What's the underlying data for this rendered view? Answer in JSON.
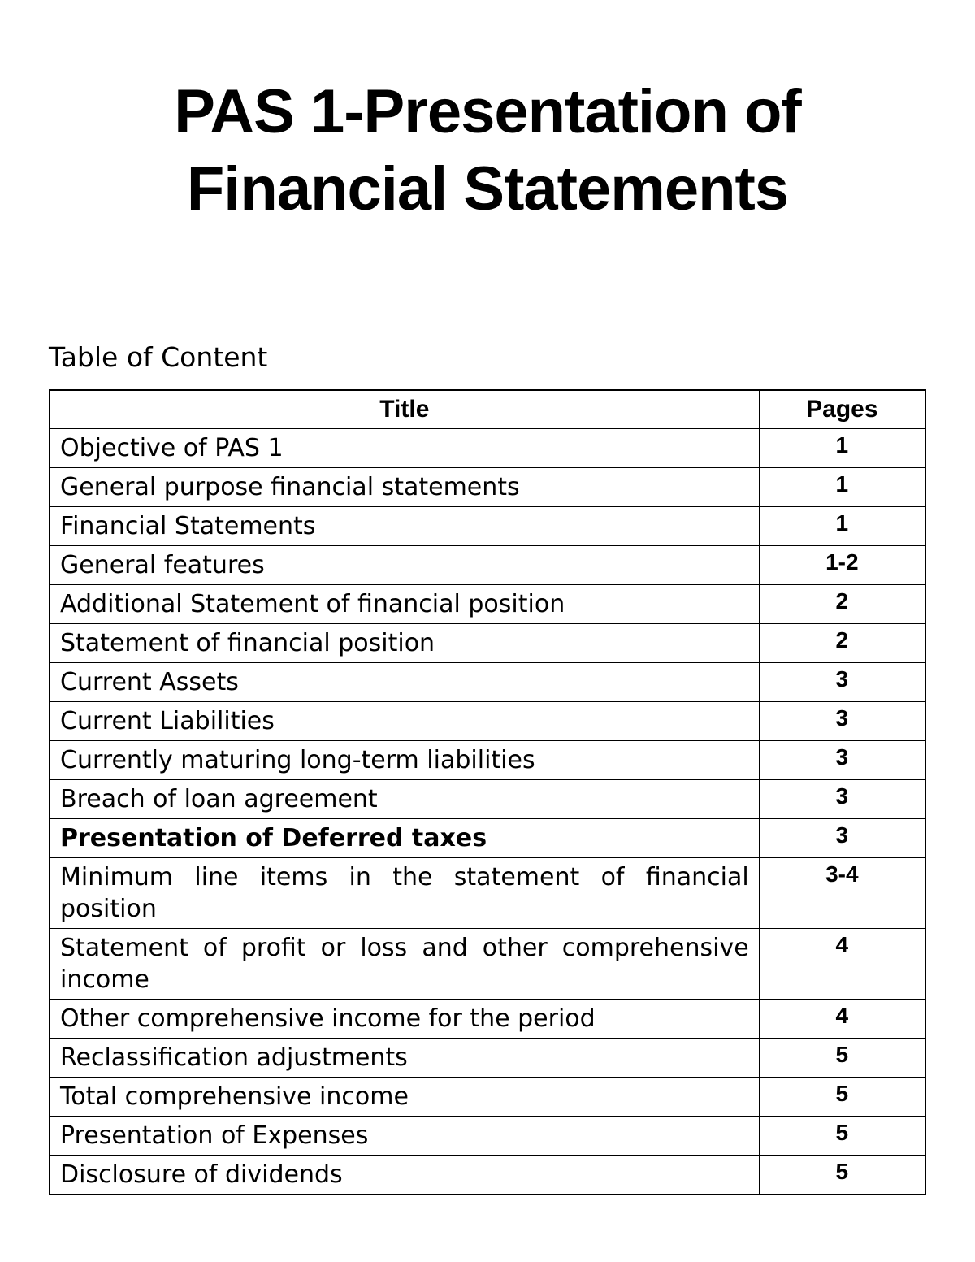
{
  "document": {
    "title": "PAS 1-Presentation of Financial Statements",
    "toc_heading": "Table of Content",
    "table": {
      "columns": [
        "Title",
        "Pages"
      ],
      "col_widths": [
        "81%",
        "19%"
      ],
      "header_fontsize": 30,
      "header_fontweight": 900,
      "cell_fontsize": 30,
      "pages_fontsize": 28,
      "pages_fontweight": 900,
      "border_color": "#000000",
      "background_color": "#ffffff",
      "rows": [
        {
          "title": "Objective of PAS 1",
          "pages": "1",
          "bold": false,
          "justified": false
        },
        {
          "title": "General purpose financial statements",
          "pages": "1",
          "bold": false,
          "justified": false
        },
        {
          "title": "Financial Statements",
          "pages": "1",
          "bold": false,
          "justified": false
        },
        {
          "title": "General features",
          "pages": "1-2",
          "bold": false,
          "justified": false
        },
        {
          "title": "Additional Statement of financial position",
          "pages": "2",
          "bold": false,
          "justified": false
        },
        {
          "title": "Statement of financial position",
          "pages": "2",
          "bold": false,
          "justified": false
        },
        {
          "title": "Current Assets",
          "pages": "3",
          "bold": false,
          "justified": false
        },
        {
          "title": "Current Liabilities",
          "pages": "3",
          "bold": false,
          "justified": false
        },
        {
          "title": "Currently maturing long-term liabilities",
          "pages": "3",
          "bold": false,
          "justified": false
        },
        {
          "title": "Breach of loan agreement",
          "pages": "3",
          "bold": false,
          "justified": false
        },
        {
          "title": "Presentation of Deferred taxes",
          "pages": "3",
          "bold": true,
          "justified": false
        },
        {
          "title": "Minimum line items in the statement of financial position",
          "pages": "3-4",
          "bold": false,
          "justified": true
        },
        {
          "title": "Statement of profit or loss and other comprehensive income",
          "pages": "4",
          "bold": false,
          "justified": true
        },
        {
          "title": "Other comprehensive income for the period",
          "pages": "4",
          "bold": false,
          "justified": false
        },
        {
          "title": "Reclassification adjustments",
          "pages": "5",
          "bold": false,
          "justified": false
        },
        {
          "title": "Total comprehensive income",
          "pages": "5",
          "bold": false,
          "justified": false
        },
        {
          "title": "Presentation of Expenses",
          "pages": "5",
          "bold": false,
          "justified": false
        },
        {
          "title": "Disclosure of dividends",
          "pages": "5",
          "bold": false,
          "justified": false
        }
      ]
    },
    "title_style": {
      "fontsize": 76,
      "fontweight": 900,
      "color": "#000000",
      "align": "center"
    },
    "toc_heading_style": {
      "fontsize": 33,
      "fontweight": 400,
      "color": "#000000"
    }
  }
}
